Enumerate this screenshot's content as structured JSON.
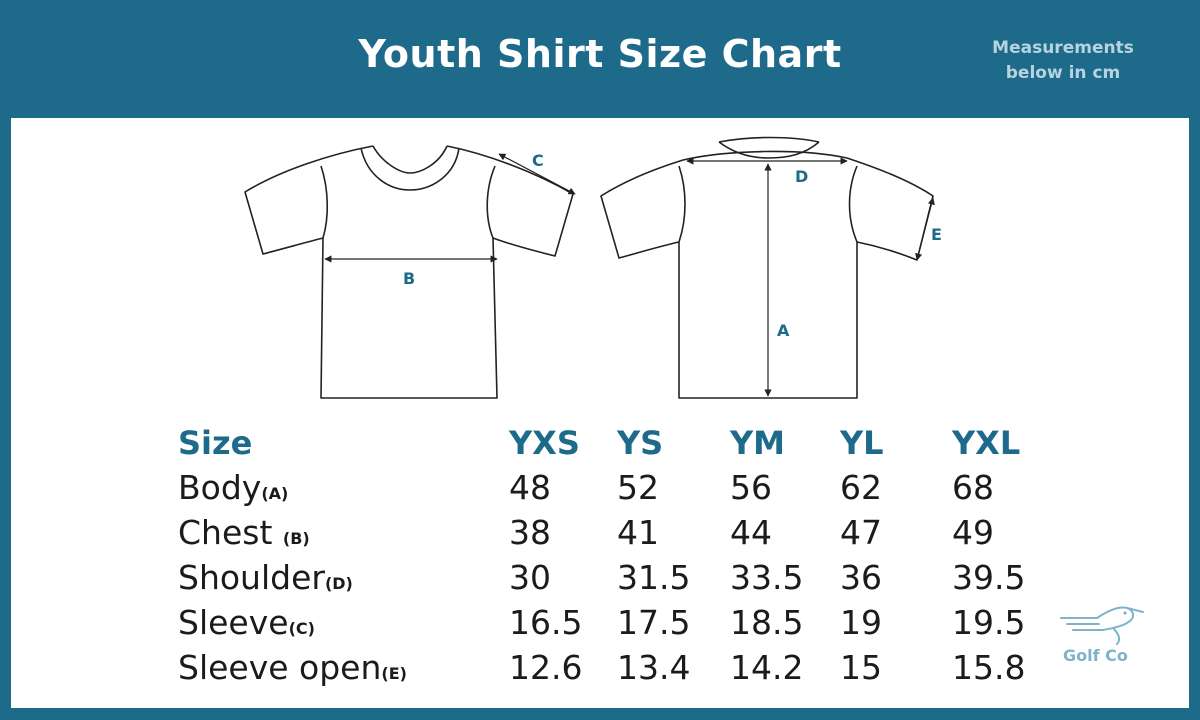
{
  "header": {
    "title": "Youth Shirt Size Chart",
    "units_line1": "Measurements",
    "units_line2": "below in cm"
  },
  "diagram_labels": {
    "A": "A",
    "B": "B",
    "C": "C",
    "D": "D",
    "E": "E"
  },
  "table": {
    "header_label": "Size",
    "sizes": [
      "YXS",
      "YS",
      "YM",
      "YL",
      "YXL"
    ],
    "rows": [
      {
        "label": "Body",
        "code": "(A)",
        "values": [
          "48",
          "52",
          "56",
          "62",
          "68"
        ]
      },
      {
        "label": "Chest ",
        "code": "(B)",
        "values": [
          "38",
          "41",
          "44",
          "47",
          "49"
        ]
      },
      {
        "label": "Shoulder",
        "code": "(D)",
        "values": [
          "30",
          "31.5",
          "33.5",
          "36",
          "39.5"
        ]
      },
      {
        "label": "Sleeve",
        "code": "(C)",
        "values": [
          "16.5",
          "17.5",
          "18.5",
          "19",
          "19.5"
        ]
      },
      {
        "label": "Sleeve open",
        "code": "(E)",
        "values": [
          "12.6",
          "13.4",
          "14.2",
          "15",
          "15.8"
        ]
      }
    ]
  },
  "brand": {
    "name": "Golf Co"
  },
  "colors": {
    "frame": "#1e6a8a",
    "accent": "#1e6a8a",
    "text": "#1b1b1b"
  }
}
